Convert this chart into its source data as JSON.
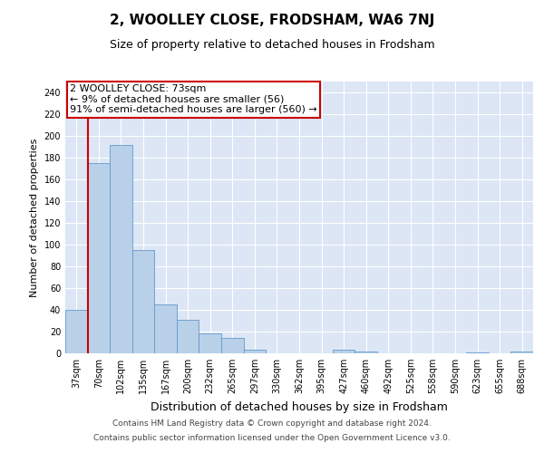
{
  "title": "2, WOOLLEY CLOSE, FRODSHAM, WA6 7NJ",
  "subtitle": "Size of property relative to detached houses in Frodsham",
  "xlabel": "Distribution of detached houses by size in Frodsham",
  "ylabel": "Number of detached properties",
  "footnote1": "Contains HM Land Registry data © Crown copyright and database right 2024.",
  "footnote2": "Contains public sector information licensed under the Open Government Licence v3.0.",
  "categories": [
    "37sqm",
    "70sqm",
    "102sqm",
    "135sqm",
    "167sqm",
    "200sqm",
    "232sqm",
    "265sqm",
    "297sqm",
    "330sqm",
    "362sqm",
    "395sqm",
    "427sqm",
    "460sqm",
    "492sqm",
    "525sqm",
    "558sqm",
    "590sqm",
    "623sqm",
    "655sqm",
    "688sqm"
  ],
  "values": [
    40,
    175,
    192,
    95,
    45,
    31,
    18,
    14,
    3,
    0,
    0,
    0,
    3,
    2,
    0,
    0,
    0,
    0,
    1,
    0,
    2
  ],
  "bar_color": "#b8d0e8",
  "bar_edge_color": "#6699cc",
  "background_color": "#dce6f5",
  "grid_color": "#c5d5e8",
  "ylim": [
    0,
    250
  ],
  "yticks": [
    0,
    20,
    40,
    60,
    80,
    100,
    120,
    140,
    160,
    180,
    200,
    220,
    240
  ],
  "annotation_line1": "2 WOOLLEY CLOSE: 73sqm",
  "annotation_line2": "← 9% of detached houses are smaller (56)",
  "annotation_line3": "91% of semi-detached houses are larger (560) →",
  "marker_color": "#cc0000",
  "title_fontsize": 11,
  "subtitle_fontsize": 9,
  "xlabel_fontsize": 9,
  "ylabel_fontsize": 8,
  "tick_fontsize": 7,
  "annotation_fontsize": 8,
  "footnote_fontsize": 6.5
}
